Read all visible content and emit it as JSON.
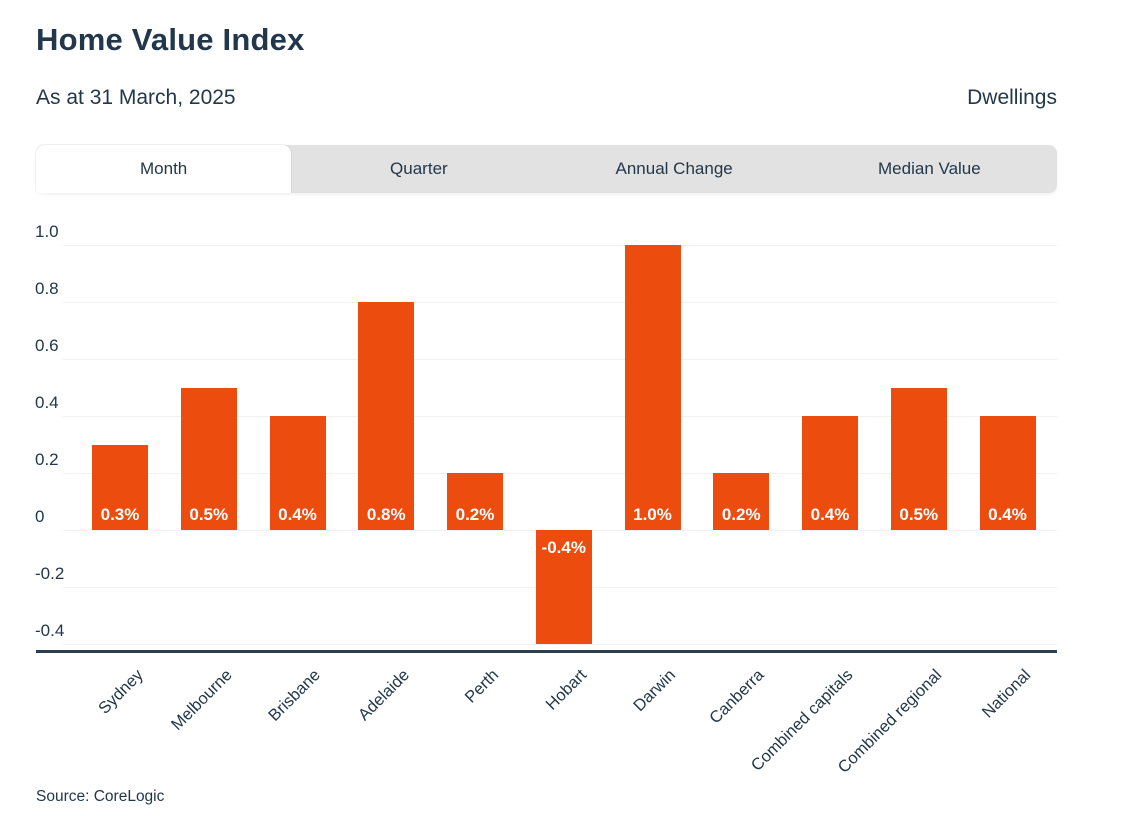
{
  "header": {
    "title": "Home Value Index",
    "subtitle": "As at 31 March, 2025",
    "dwellings_label": "Dwellings"
  },
  "tabs": [
    {
      "label": "Month",
      "active": true
    },
    {
      "label": "Quarter",
      "active": false
    },
    {
      "label": "Annual Change",
      "active": false
    },
    {
      "label": "Median Value",
      "active": false
    }
  ],
  "chart_data": {
    "type": "bar",
    "title": "Home Value Index",
    "categories": [
      "Sydney",
      "Melbourne",
      "Brisbane",
      "Adelaide",
      "Perth",
      "Hobart",
      "Darwin",
      "Canberra",
      "Combined capitals",
      "Combined regional",
      "National"
    ],
    "values": [
      0.3,
      0.5,
      0.4,
      0.8,
      0.2,
      -0.4,
      1.0,
      0.2,
      0.4,
      0.5,
      0.4
    ],
    "bar_labels": [
      "0.3%",
      "0.5%",
      "0.4%",
      "0.8%",
      "0.2%",
      "-0.4%",
      "1.0%",
      "0.2%",
      "0.4%",
      "0.5%",
      "0.4%"
    ],
    "ytick_labels": [
      "1.0",
      "0.8",
      "0.6",
      "0.4",
      "0.2",
      "0",
      "-0.2",
      "-0.4"
    ],
    "ytick_values": [
      1.0,
      0.8,
      0.6,
      0.4,
      0.2,
      0,
      -0.2,
      -0.4
    ],
    "ylim": [
      -0.43,
      1.1
    ],
    "grid": true,
    "legend": false,
    "xlabel": "",
    "ylabel": ""
  },
  "footer": {
    "source": "Source: CoreLogic"
  },
  "colors": {
    "accent_orange": "#ED4C0F",
    "dark_text": "#22384A",
    "tab_bar_bg": "#E3E2E2",
    "gridline": "#F1F1F1",
    "axis_line": "#2C3E50",
    "background": "#FFFFFF",
    "bar_label_text": "#FFFFFF"
  }
}
